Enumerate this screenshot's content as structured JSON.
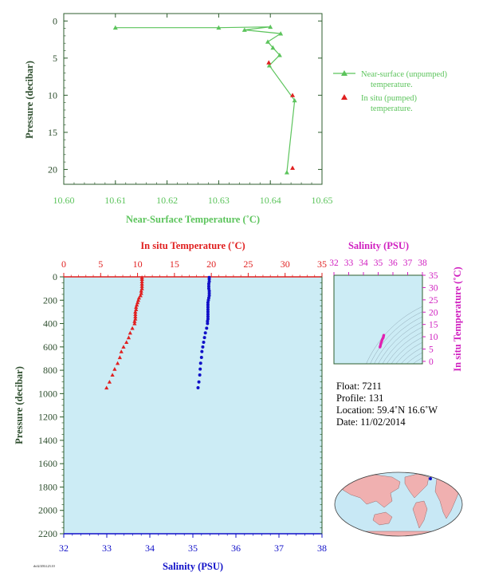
{
  "chart_data": [
    {
      "type": "line",
      "id": "near-surface-profile",
      "xlabel": "Near-Surface Temperature (˚C)",
      "ylabel": "Pressure (decibar)",
      "xlim": [
        10.6,
        10.65
      ],
      "ylim": [
        22,
        -1
      ],
      "xticks": [
        "10.60",
        "10.61",
        "10.62",
        "10.63",
        "10.64",
        "10.65"
      ],
      "yticks": [
        "0",
        "5",
        "10",
        "15",
        "20"
      ],
      "series": [
        {
          "name": "Near-surface (unpumped) temperature.",
          "legend_lines": [
            "Near-surface (unpumped)",
            "temperature."
          ],
          "color": "#5cc45c",
          "marker": "triangle",
          "points": [
            {
              "t": 10.61,
              "p": 0.9
            },
            {
              "t": 10.63,
              "p": 0.9
            },
            {
              "t": 10.64,
              "p": 0.8
            },
            {
              "t": 10.635,
              "p": 1.2
            },
            {
              "t": 10.642,
              "p": 1.7
            },
            {
              "t": 10.6395,
              "p": 2.8
            },
            {
              "t": 10.6405,
              "p": 3.6
            },
            {
              "t": 10.6418,
              "p": 4.6
            },
            {
              "t": 10.6398,
              "p": 6.0
            },
            {
              "t": 10.6447,
              "p": 10.7
            },
            {
              "t": 10.6432,
              "p": 20.4
            }
          ]
        },
        {
          "name": "In situ (pumped) temperature.",
          "legend_lines": [
            "In situ (pumped)",
            "temperature."
          ],
          "color": "#e02020",
          "marker": "triangle",
          "points": [
            {
              "t": 10.6397,
              "p": 5.6
            },
            {
              "t": 10.6443,
              "p": 10.0
            },
            {
              "t": 10.6443,
              "p": 19.8
            }
          ]
        }
      ]
    },
    {
      "type": "scatter",
      "id": "profile-main",
      "ylabel": "Pressure (decibar)",
      "ylim": [
        2200,
        0
      ],
      "yticks": [
        "0",
        "200",
        "400",
        "600",
        "800",
        "1000",
        "1200",
        "1400",
        "1600",
        "1800",
        "2000",
        "2200"
      ],
      "top_axis": {
        "label": "In situ Temperature (˚C)",
        "range": [
          0,
          35
        ],
        "ticks": [
          "0",
          "5",
          "10",
          "15",
          "20",
          "25",
          "30",
          "35"
        ],
        "color": "#e02020"
      },
      "bottom_axis": {
        "label": "Salinity (PSU)",
        "range": [
          32,
          38
        ],
        "ticks": [
          "32",
          "33",
          "34",
          "35",
          "36",
          "37",
          "38"
        ],
        "color": "#1010c8"
      },
      "temperature": {
        "color": "#e02020",
        "marker": "triangle",
        "points": [
          {
            "v": 10.6,
            "p": 5
          },
          {
            "v": 10.6,
            "p": 20
          },
          {
            "v": 10.6,
            "p": 40
          },
          {
            "v": 10.6,
            "p": 60
          },
          {
            "v": 10.6,
            "p": 80
          },
          {
            "v": 10.6,
            "p": 100
          },
          {
            "v": 10.5,
            "p": 120
          },
          {
            "v": 10.5,
            "p": 140
          },
          {
            "v": 10.4,
            "p": 160
          },
          {
            "v": 10.2,
            "p": 180
          },
          {
            "v": 10.1,
            "p": 200
          },
          {
            "v": 10.0,
            "p": 220
          },
          {
            "v": 9.9,
            "p": 240
          },
          {
            "v": 9.8,
            "p": 260
          },
          {
            "v": 9.8,
            "p": 280
          },
          {
            "v": 9.7,
            "p": 300
          },
          {
            "v": 9.7,
            "p": 320
          },
          {
            "v": 9.7,
            "p": 340
          },
          {
            "v": 9.7,
            "p": 360
          },
          {
            "v": 9.6,
            "p": 380
          },
          {
            "v": 9.6,
            "p": 400
          },
          {
            "v": 9.3,
            "p": 440
          },
          {
            "v": 9.0,
            "p": 480
          },
          {
            "v": 8.8,
            "p": 520
          },
          {
            "v": 8.5,
            "p": 560
          },
          {
            "v": 8.1,
            "p": 600
          },
          {
            "v": 7.8,
            "p": 640
          },
          {
            "v": 7.6,
            "p": 690
          },
          {
            "v": 7.3,
            "p": 740
          },
          {
            "v": 6.9,
            "p": 790
          },
          {
            "v": 6.6,
            "p": 840
          },
          {
            "v": 6.2,
            "p": 900
          },
          {
            "v": 5.8,
            "p": 950
          }
        ]
      },
      "salinity": {
        "color": "#1010c8",
        "marker": "dot",
        "points": [
          {
            "v": 35.38,
            "p": 5
          },
          {
            "v": 35.38,
            "p": 20
          },
          {
            "v": 35.38,
            "p": 40
          },
          {
            "v": 35.37,
            "p": 60
          },
          {
            "v": 35.37,
            "p": 80
          },
          {
            "v": 35.37,
            "p": 100
          },
          {
            "v": 35.38,
            "p": 120
          },
          {
            "v": 35.38,
            "p": 140
          },
          {
            "v": 35.38,
            "p": 160
          },
          {
            "v": 35.37,
            "p": 180
          },
          {
            "v": 35.36,
            "p": 200
          },
          {
            "v": 35.35,
            "p": 220
          },
          {
            "v": 35.35,
            "p": 240
          },
          {
            "v": 35.35,
            "p": 260
          },
          {
            "v": 35.35,
            "p": 280
          },
          {
            "v": 35.35,
            "p": 300
          },
          {
            "v": 35.35,
            "p": 320
          },
          {
            "v": 35.35,
            "p": 340
          },
          {
            "v": 35.35,
            "p": 360
          },
          {
            "v": 35.34,
            "p": 380
          },
          {
            "v": 35.34,
            "p": 400
          },
          {
            "v": 35.32,
            "p": 440
          },
          {
            "v": 35.29,
            "p": 480
          },
          {
            "v": 35.27,
            "p": 520
          },
          {
            "v": 35.25,
            "p": 560
          },
          {
            "v": 35.23,
            "p": 600
          },
          {
            "v": 35.21,
            "p": 640
          },
          {
            "v": 35.2,
            "p": 690
          },
          {
            "v": 35.18,
            "p": 740
          },
          {
            "v": 35.17,
            "p": 790
          },
          {
            "v": 35.16,
            "p": 840
          },
          {
            "v": 35.14,
            "p": 900
          },
          {
            "v": 35.12,
            "p": 950
          }
        ]
      }
    },
    {
      "type": "scatter",
      "id": "ts-diagram",
      "xlabel": "Salinity (PSU)",
      "ylabel": "In situ Temperature (˚C)",
      "xlim": [
        32,
        38
      ],
      "ylim": [
        -1,
        35
      ],
      "xticks": [
        "32",
        "33",
        "34",
        "35",
        "36",
        "37",
        "38"
      ],
      "yticks": [
        "0",
        "5",
        "10",
        "15",
        "20",
        "25",
        "30",
        "35"
      ],
      "color": "#e020b0",
      "points": [
        {
          "s": 35.38,
          "t": 10.6
        },
        {
          "s": 35.36,
          "t": 10.2
        },
        {
          "s": 35.35,
          "t": 9.9
        },
        {
          "s": 35.34,
          "t": 9.6
        },
        {
          "s": 35.3,
          "t": 9.2
        },
        {
          "s": 35.27,
          "t": 8.8
        },
        {
          "s": 35.24,
          "t": 8.2
        },
        {
          "s": 35.21,
          "t": 7.7
        },
        {
          "s": 35.18,
          "t": 7.2
        },
        {
          "s": 35.16,
          "t": 6.6
        },
        {
          "s": 35.14,
          "t": 6.1
        },
        {
          "s": 35.12,
          "t": 5.8
        }
      ]
    }
  ],
  "info": {
    "float": "Float: 7211",
    "profile": "Profile: 131",
    "location": "Location: 59.4˚N 16.6˚W",
    "date": "Date: 11/02/2014"
  },
  "map": {
    "float_marker_color": "#1010c8"
  },
  "footer_id": "rh/t2/2014.23.10"
}
